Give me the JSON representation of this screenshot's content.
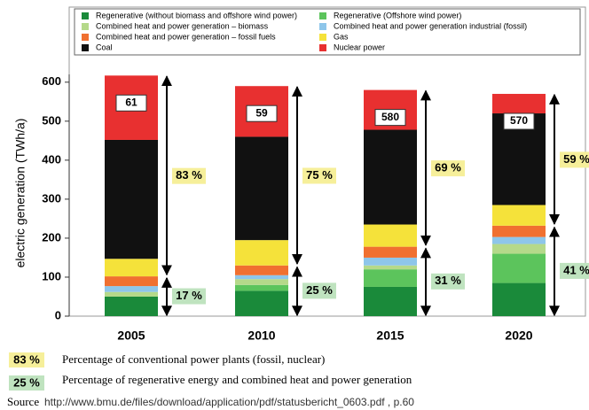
{
  "chart_data": {
    "type": "stacked_bar",
    "ylabel": "electric generation (TWh/a)",
    "categories": [
      "2005",
      "2010",
      "2015",
      "2020"
    ],
    "ylim": [
      0,
      620
    ],
    "yticks": [
      0,
      100,
      200,
      300,
      400,
      500,
      600
    ],
    "series": [
      {
        "name": "Regenerative  (without biomass and offshore wind power)",
        "color": "#1a8a3a",
        "values": [
          50,
          65,
          75,
          85
        ]
      },
      {
        "name": "Regenerative  (Offshore wind power)",
        "color": "#5cc45c",
        "values": [
          0,
          15,
          45,
          75
        ]
      },
      {
        "name": "Combined heat and power generation  – biomass",
        "color": "#b5d98a",
        "values": [
          12,
          15,
          10,
          25
        ]
      },
      {
        "name": "Combined heat and power generation  industrial (fossil)",
        "color": "#8ec6ea",
        "values": [
          15,
          10,
          20,
          18
        ]
      },
      {
        "name": "Combined heat and power generation  – fossil fuels",
        "color": "#f07030",
        "values": [
          25,
          25,
          28,
          29
        ]
      },
      {
        "name": "Gas",
        "color": "#f5e23a",
        "values": [
          45,
          65,
          57,
          53
        ]
      },
      {
        "name": "Coal",
        "color": "#111111",
        "values": [
          305,
          265,
          243,
          235
        ]
      },
      {
        "name": "Nuclear power",
        "color": "#e83030",
        "values": [
          165,
          130,
          102,
          50
        ]
      }
    ],
    "box_labels": [
      "61",
      "59",
      "580",
      "570"
    ],
    "upper_labels": [
      "83 %",
      "75 %",
      "69 %",
      "59 %"
    ],
    "lower_labels": [
      "17 %",
      "25 %",
      "31 %",
      "41 %"
    ],
    "key": [
      {
        "label": "83 %",
        "text": "Percentage of conventional power plants (fossil, nuclear)"
      },
      {
        "label": "25 %",
        "text": "Percentage of regenerative energy and  combined heat and power generation"
      }
    ],
    "source_word": "Source",
    "source_url": "http://www.bmu.de/files/download/application/pdf/statusbericht_0603.pdf , p.60"
  }
}
